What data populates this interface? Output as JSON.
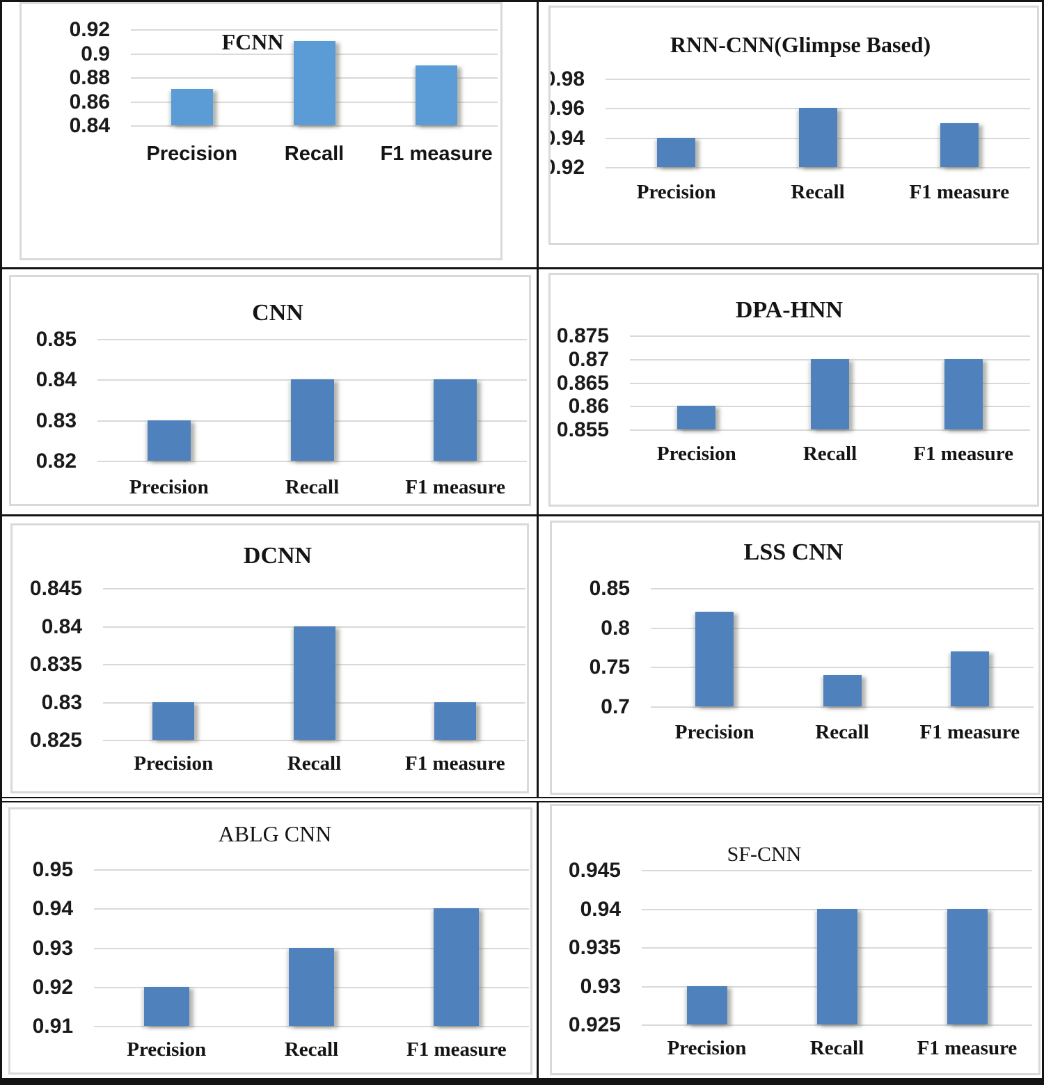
{
  "page": {
    "background": "#ffffff",
    "border_color": "#141414",
    "frame_color": "#d9d9d9",
    "gridline_color": "#d9d9d9",
    "text_color": "#141414"
  },
  "chart_data": [
    {
      "id": "fcnn",
      "type": "bar",
      "title": "FCNN",
      "categories": [
        "Precision",
        "Recall",
        "F1 measure"
      ],
      "values": [
        0.87,
        0.91,
        0.89
      ],
      "ytick_labels": [
        "0.92",
        "0.9",
        "0.88",
        "0.86",
        "0.84"
      ],
      "ylim": [
        0.84,
        0.92
      ],
      "bar_color": "#5B9CD6",
      "grid": true,
      "legend": "none",
      "xlabel": "",
      "ylabel": ""
    },
    {
      "id": "rnn",
      "type": "bar",
      "title": "RNN-CNN(Glimpse Based)",
      "categories": [
        "Precision",
        "Recall",
        "F1 measure"
      ],
      "values": [
        0.94,
        0.96,
        0.95
      ],
      "ytick_labels": [
        "0.98",
        "0.96",
        "0.94",
        "0.92"
      ],
      "ylim": [
        0.92,
        0.98
      ],
      "bar_color": "#4F81BD",
      "grid": true,
      "legend": "none",
      "xlabel": "",
      "ylabel": ""
    },
    {
      "id": "cnn",
      "type": "bar",
      "title": "CNN",
      "categories": [
        "Precision",
        "Recall",
        "F1 measure"
      ],
      "values": [
        0.83,
        0.84,
        0.84
      ],
      "ytick_labels": [
        "0.85",
        "0.84",
        "0.83",
        "0.82"
      ],
      "ylim": [
        0.82,
        0.85
      ],
      "bar_color": "#4F81BD",
      "grid": true,
      "legend": "none",
      "xlabel": "",
      "ylabel": ""
    },
    {
      "id": "dpa",
      "type": "bar",
      "title": "DPA-HNN",
      "categories": [
        "Precision",
        "Recall",
        "F1 measure"
      ],
      "values": [
        0.86,
        0.87,
        0.87
      ],
      "ytick_labels": [
        "0.875",
        "0.87",
        "0.865",
        "0.86",
        "0.855"
      ],
      "ylim": [
        0.855,
        0.875
      ],
      "bar_color": "#4F81BD",
      "grid": true,
      "legend": "none",
      "xlabel": "",
      "ylabel": ""
    },
    {
      "id": "dcnn",
      "type": "bar",
      "title": "DCNN",
      "categories": [
        "Precision",
        "Recall",
        "F1 measure"
      ],
      "values": [
        0.83,
        0.84,
        0.83
      ],
      "ytick_labels": [
        "0.845",
        "0.84",
        "0.835",
        "0.83",
        "0.825"
      ],
      "ylim": [
        0.825,
        0.845
      ],
      "bar_color": "#4F81BD",
      "grid": true,
      "legend": "none",
      "xlabel": "",
      "ylabel": ""
    },
    {
      "id": "lss",
      "type": "bar",
      "title": "LSS CNN",
      "categories": [
        "Precision",
        "Recall",
        "F1 measure"
      ],
      "values": [
        0.82,
        0.74,
        0.77
      ],
      "ytick_labels": [
        "0.85",
        "0.8",
        "0.75",
        "0.7"
      ],
      "ylim": [
        0.7,
        0.85
      ],
      "bar_color": "#4F81BD",
      "grid": true,
      "legend": "none",
      "xlabel": "",
      "ylabel": ""
    },
    {
      "id": "ablg",
      "type": "bar",
      "title": "ABLG CNN",
      "categories": [
        "Precision",
        "Recall",
        "F1 measure"
      ],
      "values": [
        0.92,
        0.93,
        0.94
      ],
      "ytick_labels": [
        "0.95",
        "0.94",
        "0.93",
        "0.92",
        "0.91"
      ],
      "ylim": [
        0.91,
        0.95
      ],
      "bar_color": "#4F81BD",
      "grid": true,
      "legend": "none",
      "xlabel": "",
      "ylabel": ""
    },
    {
      "id": "sf",
      "type": "bar",
      "title": "SF-CNN",
      "categories": [
        "Precision",
        "Recall",
        "F1 measure"
      ],
      "values": [
        0.93,
        0.94,
        0.94
      ],
      "ytick_labels": [
        "0.945",
        "0.94",
        "0.935",
        "0.93",
        "0.925"
      ],
      "ylim": [
        0.925,
        0.945
      ],
      "bar_color": "#4F81BD",
      "grid": true,
      "legend": "none",
      "xlabel": "",
      "ylabel": ""
    }
  ]
}
